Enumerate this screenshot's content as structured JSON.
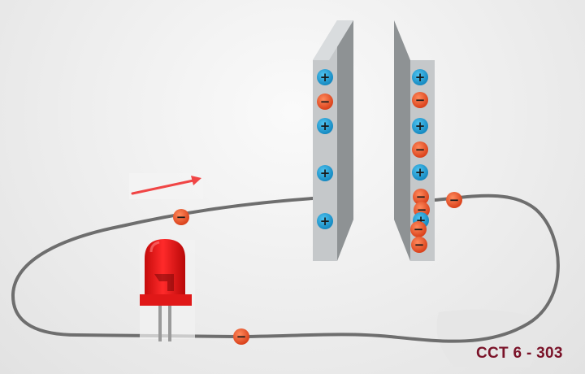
{
  "caption": "CCT 6 - 303",
  "charge_symbols": {
    "positive": "+",
    "negative": "−"
  },
  "colors": {
    "background": "#ececec",
    "wire": "#6e6e6e",
    "plate_face": "#c5c8ca",
    "plate_side": "#8e9294",
    "positive_charge": "#1ba0d8",
    "negative_charge": "#ee5a2a",
    "led": "#ee1c1c",
    "arrow": "#f04545",
    "caption": "#7a1228"
  },
  "icons": {
    "led": "led-icon",
    "arrow": "current-direction-arrow-icon",
    "positive": "positive-charge-icon",
    "negative": "negative-charge-icon"
  }
}
